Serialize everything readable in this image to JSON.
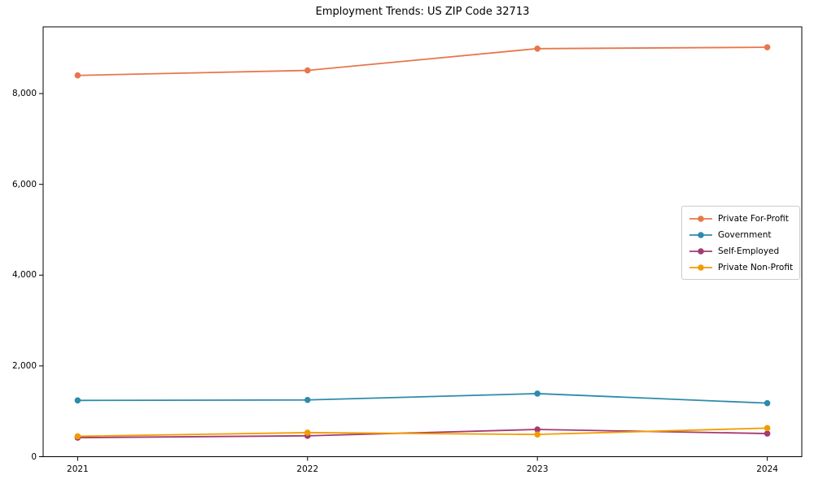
{
  "title": "Employment Trends: US ZIP Code 32713",
  "chart_data": {
    "type": "line",
    "title": "Employment Trends: US ZIP Code 32713",
    "xlabel": "",
    "ylabel": "",
    "categories": [
      "2021",
      "2022",
      "2023",
      "2024"
    ],
    "series": [
      {
        "name": "Private For-Profit",
        "color": "#E8764B",
        "values": [
          8400,
          8510,
          8990,
          9020
        ]
      },
      {
        "name": "Government",
        "color": "#2E8BAC",
        "values": [
          1240,
          1250,
          1390,
          1180
        ]
      },
      {
        "name": "Self-Employed",
        "color": "#A23B72",
        "values": [
          420,
          460,
          600,
          510
        ]
      },
      {
        "name": "Private Non-Profit",
        "color": "#F39C01",
        "values": [
          450,
          530,
          490,
          630
        ]
      }
    ],
    "ylim": [
      0,
      9470
    ],
    "yticks": {
      "values": [
        0,
        2000,
        4000,
        6000,
        8000
      ],
      "labels": [
        "0",
        "2,000",
        "4,000",
        "6,000",
        "8,000"
      ]
    },
    "grid": false,
    "legend_position": "center-right",
    "marker": "circle",
    "background": "#ffffff",
    "axis_color": "#000000"
  }
}
